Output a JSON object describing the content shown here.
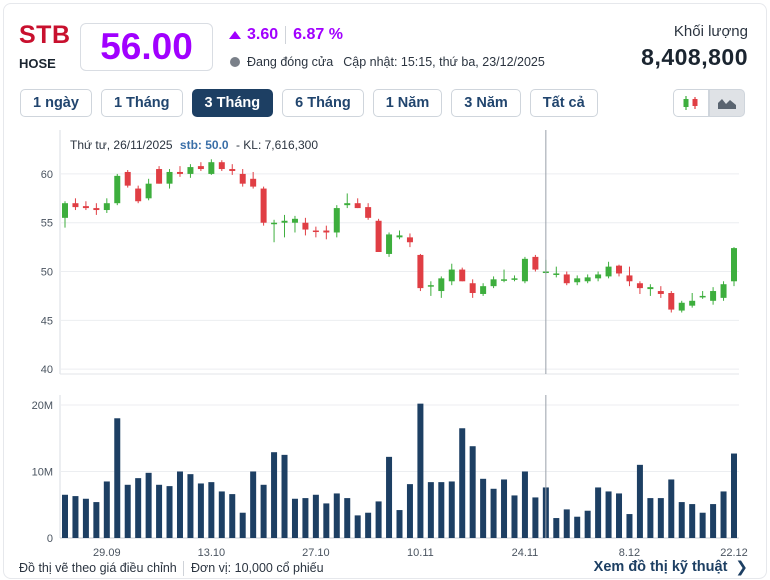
{
  "header": {
    "ticker": "STB",
    "exchange": "HOSE",
    "price": "56.00",
    "change": "3.60",
    "change_pct": "6.87 %",
    "status": "Đang đóng cửa",
    "updated": "Cập nhật: 15:15, thứ ba, 23/12/2025",
    "volume_label": "Khối lượng",
    "volume_value": "8,408,800"
  },
  "tabs": [
    {
      "label": "1 ngày",
      "active": false
    },
    {
      "label": "1 Tháng",
      "active": false
    },
    {
      "label": "3 Tháng",
      "active": true
    },
    {
      "label": "6 Tháng",
      "active": false
    },
    {
      "label": "1 Năm",
      "active": false
    },
    {
      "label": "3 Năm",
      "active": false
    },
    {
      "label": "Tất cả",
      "active": false
    }
  ],
  "chart_types": [
    "candlestick-chart-icon",
    "area-chart-icon"
  ],
  "tooltip": {
    "date": "Thứ tư, 26/11/2025",
    "series": "stb: 50.0",
    "volume": "- KL: 7,616,300"
  },
  "colors": {
    "up": "#3dae3d",
    "down": "#e03e44",
    "volume": "#1d3f63",
    "accent": "#a100ff",
    "ticker": "#c8102e"
  },
  "chart_data": {
    "type": "candlestick",
    "title": "STB",
    "price_axis": {
      "ticks": [
        40,
        45,
        50,
        55,
        60
      ],
      "ylim": [
        39.5,
        64.5
      ]
    },
    "volume_axis": {
      "ticks": [
        "0",
        "10M",
        "20M"
      ],
      "tick_values": [
        0,
        10,
        20
      ],
      "ylim": [
        0,
        21.5
      ],
      "unit": "M"
    },
    "x_tick_labels": [
      {
        "label": "29.09",
        "index": 4
      },
      {
        "label": "13.10",
        "index": 14
      },
      {
        "label": "27.10",
        "index": 24
      },
      {
        "label": "10.11",
        "index": 34
      },
      {
        "label": "24.11",
        "index": 44
      },
      {
        "label": "8.12",
        "index": 54
      },
      {
        "label": "22.12",
        "index": 64
      }
    ],
    "crosshair_index": 46,
    "candles": [
      {
        "o": 55.5,
        "h": 57.2,
        "l": 54.5,
        "c": 57.0,
        "v": 6.5
      },
      {
        "o": 57.0,
        "h": 57.5,
        "l": 56.3,
        "c": 56.6,
        "v": 6.3
      },
      {
        "o": 56.7,
        "h": 57.2,
        "l": 56.3,
        "c": 56.5,
        "v": 5.9
      },
      {
        "o": 56.5,
        "h": 57.0,
        "l": 55.8,
        "c": 56.3,
        "v": 5.4
      },
      {
        "o": 56.3,
        "h": 57.5,
        "l": 56.0,
        "c": 57.0,
        "v": 8.5
      },
      {
        "o": 57.0,
        "h": 60.0,
        "l": 56.8,
        "c": 59.8,
        "v": 18.0
      },
      {
        "o": 60.2,
        "h": 60.4,
        "l": 58.6,
        "c": 58.8,
        "v": 8.0
      },
      {
        "o": 58.5,
        "h": 58.8,
        "l": 57.0,
        "c": 57.2,
        "v": 9.0
      },
      {
        "o": 57.5,
        "h": 59.5,
        "l": 57.3,
        "c": 59.0,
        "v": 9.8
      },
      {
        "o": 60.5,
        "h": 60.8,
        "l": 59.0,
        "c": 59.0,
        "v": 8.0
      },
      {
        "o": 59.0,
        "h": 60.5,
        "l": 58.5,
        "c": 60.2,
        "v": 7.8
      },
      {
        "o": 60.2,
        "h": 60.8,
        "l": 59.7,
        "c": 60.0,
        "v": 10.0
      },
      {
        "o": 60.0,
        "h": 61.0,
        "l": 59.6,
        "c": 60.7,
        "v": 9.6
      },
      {
        "o": 60.8,
        "h": 61.2,
        "l": 60.3,
        "c": 60.5,
        "v": 8.2
      },
      {
        "o": 60.0,
        "h": 61.5,
        "l": 59.9,
        "c": 61.2,
        "v": 8.4
      },
      {
        "o": 61.2,
        "h": 61.4,
        "l": 60.3,
        "c": 60.5,
        "v": 7.0
      },
      {
        "o": 60.5,
        "h": 61.0,
        "l": 59.9,
        "c": 60.3,
        "v": 6.6
      },
      {
        "o": 60.0,
        "h": 60.5,
        "l": 58.7,
        "c": 59.0,
        "v": 3.8
      },
      {
        "o": 59.5,
        "h": 60.2,
        "l": 58.5,
        "c": 58.7,
        "v": 10.0
      },
      {
        "o": 58.5,
        "h": 58.7,
        "l": 54.7,
        "c": 55.0,
        "v": 8.0
      },
      {
        "o": 55.0,
        "h": 55.3,
        "l": 53.0,
        "c": 55.0,
        "v": 12.9
      },
      {
        "o": 55.0,
        "h": 55.8,
        "l": 53.5,
        "c": 55.2,
        "v": 12.5
      },
      {
        "o": 55.0,
        "h": 55.7,
        "l": 54.0,
        "c": 55.4,
        "v": 5.9
      },
      {
        "o": 55.0,
        "h": 55.5,
        "l": 53.7,
        "c": 54.3,
        "v": 6.0
      },
      {
        "o": 54.2,
        "h": 54.6,
        "l": 53.5,
        "c": 54.1,
        "v": 6.5
      },
      {
        "o": 54.2,
        "h": 54.7,
        "l": 53.3,
        "c": 54.0,
        "v": 5.2
      },
      {
        "o": 54.0,
        "h": 56.8,
        "l": 53.5,
        "c": 56.5,
        "v": 6.7
      },
      {
        "o": 56.8,
        "h": 58.0,
        "l": 56.5,
        "c": 57.0,
        "v": 6.0
      },
      {
        "o": 57.0,
        "h": 57.5,
        "l": 56.5,
        "c": 56.5,
        "v": 3.4
      },
      {
        "o": 56.6,
        "h": 57.0,
        "l": 55.3,
        "c": 55.5,
        "v": 3.8
      },
      {
        "o": 55.2,
        "h": 55.4,
        "l": 52.0,
        "c": 52.0,
        "v": 5.5
      },
      {
        "o": 51.8,
        "h": 54.0,
        "l": 51.5,
        "c": 53.8,
        "v": 12.2
      },
      {
        "o": 53.5,
        "h": 54.2,
        "l": 53.3,
        "c": 53.7,
        "v": 4.2
      },
      {
        "o": 53.5,
        "h": 53.9,
        "l": 52.5,
        "c": 53.0,
        "v": 8.1
      },
      {
        "o": 51.7,
        "h": 51.8,
        "l": 48.0,
        "c": 48.3,
        "v": 20.2
      },
      {
        "o": 48.5,
        "h": 49.0,
        "l": 47.5,
        "c": 48.6,
        "v": 8.4
      },
      {
        "o": 48.0,
        "h": 49.5,
        "l": 47.3,
        "c": 49.3,
        "v": 8.4
      },
      {
        "o": 49.0,
        "h": 50.8,
        "l": 48.6,
        "c": 50.2,
        "v": 8.5
      },
      {
        "o": 50.2,
        "h": 50.4,
        "l": 49.0,
        "c": 49.0,
        "v": 16.5
      },
      {
        "o": 48.8,
        "h": 49.2,
        "l": 47.3,
        "c": 47.8,
        "v": 13.8
      },
      {
        "o": 47.7,
        "h": 48.8,
        "l": 47.5,
        "c": 48.5,
        "v": 8.9
      },
      {
        "o": 48.5,
        "h": 49.5,
        "l": 48.3,
        "c": 49.2,
        "v": 7.4
      },
      {
        "o": 49.1,
        "h": 50.2,
        "l": 48.9,
        "c": 49.2,
        "v": 8.8
      },
      {
        "o": 49.2,
        "h": 49.6,
        "l": 49.0,
        "c": 49.3,
        "v": 6.4
      },
      {
        "o": 49.0,
        "h": 51.5,
        "l": 48.8,
        "c": 51.3,
        "v": 10.0
      },
      {
        "o": 51.5,
        "h": 51.7,
        "l": 50.0,
        "c": 50.2,
        "v": 6.1
      },
      {
        "o": 50.0,
        "h": 51.2,
        "l": 49.8,
        "c": 50.0,
        "v": 7.6
      },
      {
        "o": 49.8,
        "h": 50.5,
        "l": 49.4,
        "c": 49.8,
        "v": 3.0
      },
      {
        "o": 49.7,
        "h": 50.0,
        "l": 48.6,
        "c": 48.8,
        "v": 4.3
      },
      {
        "o": 48.9,
        "h": 49.6,
        "l": 48.6,
        "c": 49.3,
        "v": 3.2
      },
      {
        "o": 49.0,
        "h": 49.7,
        "l": 48.8,
        "c": 49.4,
        "v": 4.1
      },
      {
        "o": 49.3,
        "h": 50.0,
        "l": 49.0,
        "c": 49.7,
        "v": 7.6
      },
      {
        "o": 49.5,
        "h": 51.0,
        "l": 49.3,
        "c": 50.5,
        "v": 7.0
      },
      {
        "o": 50.6,
        "h": 50.7,
        "l": 49.5,
        "c": 49.8,
        "v": 6.7
      },
      {
        "o": 49.6,
        "h": 50.5,
        "l": 48.5,
        "c": 49.0,
        "v": 3.6
      },
      {
        "o": 48.8,
        "h": 49.0,
        "l": 47.7,
        "c": 48.3,
        "v": 11.0
      },
      {
        "o": 48.2,
        "h": 48.7,
        "l": 47.5,
        "c": 48.4,
        "v": 6.0
      },
      {
        "o": 48.0,
        "h": 48.5,
        "l": 47.3,
        "c": 47.7,
        "v": 6.0
      },
      {
        "o": 47.8,
        "h": 48.0,
        "l": 45.8,
        "c": 46.1,
        "v": 8.8
      },
      {
        "o": 46.0,
        "h": 47.0,
        "l": 45.8,
        "c": 46.8,
        "v": 5.4
      },
      {
        "o": 46.5,
        "h": 47.8,
        "l": 46.3,
        "c": 47.0,
        "v": 5.1
      },
      {
        "o": 47.5,
        "h": 48.0,
        "l": 47.2,
        "c": 47.5,
        "v": 3.8
      },
      {
        "o": 47.0,
        "h": 48.4,
        "l": 46.6,
        "c": 48.0,
        "v": 5.1
      },
      {
        "o": 47.3,
        "h": 49.0,
        "l": 47.0,
        "c": 48.7,
        "v": 7.0
      },
      {
        "o": 49.0,
        "h": 52.5,
        "l": 48.5,
        "c": 52.4,
        "v": 12.7
      }
    ]
  },
  "footer": {
    "note": "Đồ thị vẽ theo giá điều chỉnh",
    "unit": "Đơn vị: 10,000 cổ phiếu",
    "tech_link": "Xem đồ thị kỹ thuật"
  }
}
